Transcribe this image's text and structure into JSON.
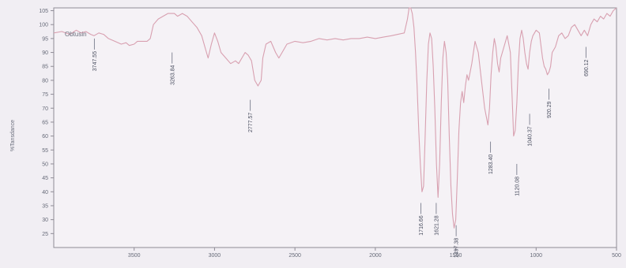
{
  "chart_data": {
    "type": "line",
    "title": "",
    "xlabel": "",
    "ylabel": "%Tansdance",
    "xlim": [
      4000,
      500
    ],
    "ylim": [
      20,
      106
    ],
    "x_ticks": [
      3500,
      3000,
      2500,
      2000,
      1500,
      1000,
      500
    ],
    "y_ticks": [
      25,
      30,
      35,
      40,
      45,
      50,
      55,
      60,
      65,
      70,
      75,
      80,
      85,
      90,
      95,
      100,
      105
    ],
    "grid": false,
    "series": [
      {
        "name": "Obtusin",
        "color": "#d8a0b0",
        "x": [
          4000,
          3950,
          3900,
          3860,
          3830,
          3800,
          3770,
          3750,
          3720,
          3690,
          3660,
          3620,
          3580,
          3550,
          3530,
          3500,
          3480,
          3450,
          3420,
          3400,
          3380,
          3350,
          3320,
          3290,
          3270,
          3250,
          3230,
          3200,
          3170,
          3140,
          3110,
          3080,
          3060,
          3040,
          3020,
          3000,
          2980,
          2960,
          2930,
          2900,
          2870,
          2850,
          2830,
          2810,
          2790,
          2770,
          2750,
          2730,
          2710,
          2700,
          2680,
          2650,
          2620,
          2600,
          2580,
          2550,
          2500,
          2450,
          2400,
          2350,
          2300,
          2250,
          2200,
          2150,
          2100,
          2050,
          2000,
          1950,
          1900,
          1860,
          1820,
          1800,
          1790,
          1780,
          1770,
          1760,
          1750,
          1740,
          1730,
          1720,
          1710,
          1700,
          1690,
          1680,
          1670,
          1660,
          1650,
          1640,
          1630,
          1620,
          1610,
          1600,
          1590,
          1580,
          1570,
          1560,
          1550,
          1540,
          1530,
          1520,
          1510,
          1500,
          1490,
          1480,
          1470,
          1460,
          1450,
          1440,
          1430,
          1420,
          1400,
          1380,
          1360,
          1340,
          1320,
          1300,
          1290,
          1280,
          1270,
          1260,
          1250,
          1240,
          1230,
          1220,
          1200,
          1180,
          1160,
          1150,
          1140,
          1130,
          1120,
          1110,
          1100,
          1090,
          1080,
          1070,
          1060,
          1050,
          1040,
          1030,
          1020,
          1000,
          980,
          960,
          950,
          940,
          930,
          920,
          910,
          900,
          880,
          860,
          840,
          820,
          800,
          780,
          760,
          740,
          720,
          700,
          690,
          680,
          660,
          640,
          620,
          600,
          580,
          560,
          540,
          520,
          500
        ],
        "values": [
          97,
          97.5,
          96.5,
          98,
          97,
          97.5,
          96.5,
          96,
          97,
          96.5,
          95,
          94,
          93,
          93.5,
          92.5,
          93,
          94,
          94,
          94,
          95,
          100,
          102,
          103,
          104,
          104,
          104,
          103,
          104,
          103,
          101,
          99,
          96,
          92,
          88,
          93,
          97,
          94,
          90,
          88,
          86,
          87,
          86,
          88,
          90,
          89,
          87,
          80,
          78,
          80,
          88,
          93,
          94,
          90,
          88,
          90,
          93,
          94,
          93.5,
          94,
          95,
          94.5,
          95,
          94.5,
          95,
          95,
          95.5,
          95,
          95.5,
          96,
          96.5,
          97,
          102,
          106,
          106,
          104,
          99,
          90,
          78,
          62,
          50,
          40,
          42,
          60,
          80,
          93,
          97,
          95,
          85,
          70,
          50,
          38,
          50,
          72,
          88,
          94,
          90,
          80,
          60,
          42,
          32,
          27,
          30,
          45,
          62,
          72,
          76,
          72,
          78,
          82,
          80,
          86,
          94,
          90,
          80,
          70,
          64,
          70,
          82,
          90,
          95,
          92,
          86,
          83,
          88,
          92,
          96,
          90,
          75,
          60,
          62,
          72,
          86,
          95,
          98,
          95,
          90,
          86,
          84,
          90,
          94,
          96,
          98,
          97,
          88,
          85,
          84,
          82,
          83,
          85,
          90,
          92,
          96,
          97,
          95,
          96,
          99,
          100,
          98,
          96,
          98,
          97,
          96,
          100,
          102,
          101,
          103,
          102,
          104,
          103,
          105,
          106
        ]
      }
    ],
    "legend": {
      "label": "Obtusin",
      "position": "top-left"
    },
    "peak_labels": [
      {
        "x": 3747.55,
        "label": "3747.55",
        "y_anchor": 95
      },
      {
        "x": 3263.84,
        "label": "3263.84",
        "y_anchor": 90
      },
      {
        "x": 2777.57,
        "label": "2777.57",
        "y_anchor": 73
      },
      {
        "x": 1716.66,
        "label": "1716.66",
        "y_anchor": 36
      },
      {
        "x": 1621.28,
        "label": "1621.28",
        "y_anchor": 36
      },
      {
        "x": 1497.38,
        "label": "1497.38",
        "y_anchor": 28
      },
      {
        "x": 1283.4,
        "label": "1283.40",
        "y_anchor": 58
      },
      {
        "x": 1120.08,
        "label": "1120.08",
        "y_anchor": 50
      },
      {
        "x": 1040.37,
        "label": "1040.37",
        "y_anchor": 68
      },
      {
        "x": 920.29,
        "label": "920.29",
        "y_anchor": 77
      },
      {
        "x": 690.12,
        "label": "690.12",
        "y_anchor": 92
      }
    ]
  }
}
